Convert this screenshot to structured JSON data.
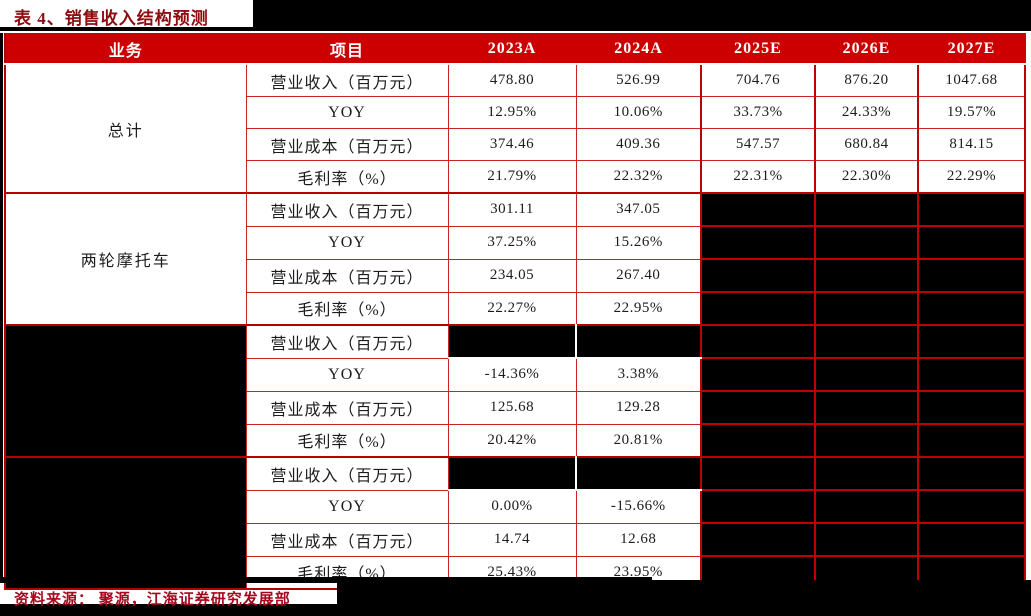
{
  "title": "表 4、销售收入结构预测",
  "source_note": "资料来源： 聚源，江海证券研究发展部",
  "colors": {
    "header_bg": "#cc0000",
    "header_text": "#ffffff",
    "grid_border": "#cc2222",
    "bold_border": "#b50000",
    "title_text": "#8e0b10",
    "source_text": "#a5081e",
    "redaction": "#000000"
  },
  "table": {
    "headers": [
      "业务",
      "项目",
      "2023A",
      "2024A",
      "2025E",
      "2026E",
      "2027E"
    ],
    "redacted_cell_note": "null values are blacked-out (redacted) cells",
    "groups": [
      {
        "business": "总计",
        "rows": [
          {
            "item": "营业收入（百万元）",
            "values": [
              "478.80",
              "526.99",
              "704.76",
              "876.20",
              "1047.68"
            ]
          },
          {
            "item": "YOY",
            "values": [
              "12.95%",
              "10.06%",
              "33.73%",
              "24.33%",
              "19.57%"
            ]
          },
          {
            "item": "营业成本（百万元）",
            "values": [
              "374.46",
              "409.36",
              "547.57",
              "680.84",
              "814.15"
            ]
          },
          {
            "item": "毛利率（%）",
            "values": [
              "21.79%",
              "22.32%",
              "22.31%",
              "22.30%",
              "22.29%"
            ]
          }
        ]
      },
      {
        "business": "两轮摩托车",
        "rows": [
          {
            "item": "营业收入（百万元）",
            "values": [
              "301.11",
              "347.05",
              null,
              null,
              null
            ]
          },
          {
            "item": "YOY",
            "values": [
              "37.25%",
              "15.26%",
              null,
              null,
              null
            ]
          },
          {
            "item": "营业成本（百万元）",
            "values": [
              "234.05",
              "267.40",
              null,
              null,
              null
            ]
          },
          {
            "item": "毛利率（%）",
            "values": [
              "22.27%",
              "22.95%",
              null,
              null,
              null
            ]
          }
        ]
      },
      {
        "business": null,
        "rows": [
          {
            "item": "营业收入（百万元）",
            "values": [
              null,
              null,
              null,
              null,
              null
            ]
          },
          {
            "item": "YOY",
            "values": [
              "-14.36%",
              "3.38%",
              null,
              null,
              null
            ]
          },
          {
            "item": "营业成本（百万元）",
            "values": [
              "125.68",
              "129.28",
              null,
              null,
              null
            ]
          },
          {
            "item": "毛利率（%）",
            "values": [
              "20.42%",
              "20.81%",
              null,
              null,
              null
            ]
          }
        ]
      },
      {
        "business": null,
        "rows": [
          {
            "item": "营业收入（百万元）",
            "values": [
              null,
              null,
              null,
              null,
              null
            ]
          },
          {
            "item": "YOY",
            "values": [
              "0.00%",
              "-15.66%",
              null,
              null,
              null
            ]
          },
          {
            "item": "营业成本（百万元）",
            "values": [
              "14.74",
              "12.68",
              null,
              null,
              null
            ]
          },
          {
            "item": "毛利率（%）",
            "values": [
              "25.43%",
              "23.95%",
              null,
              null,
              null
            ]
          }
        ]
      }
    ]
  }
}
